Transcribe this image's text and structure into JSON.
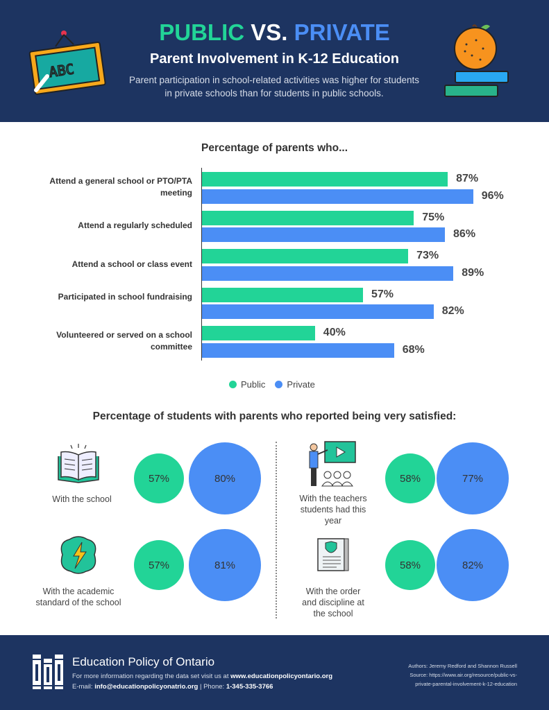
{
  "header": {
    "title_public": "PUBLIC",
    "title_vs": "VS.",
    "title_private": "PRIVATE",
    "subtitle": "Parent Involvement in K-12 Education",
    "description": "Parent participation in school-related activities was higher for students in private schools than for students in public schools."
  },
  "colors": {
    "public": "#22d497",
    "private": "#4b8ef5",
    "navy": "#1d3461"
  },
  "chart_data": {
    "type": "bar",
    "orientation": "horizontal",
    "title": "Percentage of parents who...",
    "categories": [
      "Attend a general school or PTO/PTA meeting",
      "Attend a regularly scheduled",
      "Attend a school or class event",
      "Participated in school fundraising",
      "Volunteered or served on a school committee"
    ],
    "series": [
      {
        "name": "Public",
        "values": [
          87,
          75,
          73,
          57,
          40
        ]
      },
      {
        "name": "Private",
        "values": [
          96,
          86,
          89,
          82,
          68
        ]
      }
    ],
    "labels": {
      "public": [
        "87%",
        "75%",
        "73%",
        "57%",
        "40%"
      ],
      "private": [
        "96%",
        "86%",
        "89%",
        "82%",
        "68%"
      ]
    },
    "xlim": [
      0,
      100
    ],
    "legend": "bottom"
  },
  "satisfaction": {
    "title": "Percentage of students with parents who reported being very satisfied:",
    "items": [
      {
        "caption": "With the school",
        "public": "57%",
        "private": "80%",
        "icon": "open-book-icon"
      },
      {
        "caption": "With the teachers students had this year",
        "public": "58%",
        "private": "77%",
        "icon": "teacher-presentation-icon"
      },
      {
        "caption": "With the academic standard of the school",
        "public": "57%",
        "private": "81%",
        "icon": "brain-lightning-icon"
      },
      {
        "caption": "With the order and discipline at the school",
        "public": "58%",
        "private": "82%",
        "icon": "document-shield-icon"
      }
    ]
  },
  "footer": {
    "org": "Education Policy of Ontario",
    "info_prefix": "For more information regarding the data set visit us at ",
    "website": "www.educationpolicyontario.org",
    "email_label": "E-mail: ",
    "email": "info@educationpolicyonatrio.org",
    "phone_label": " | Phone: ",
    "phone": "1-345-335-3766",
    "authors": "Authors: Jeremy Redford and Shannon Russell",
    "source": "Source: https://www.air.org/resource/public-vs-private-parental-involvement-k-12-education"
  }
}
